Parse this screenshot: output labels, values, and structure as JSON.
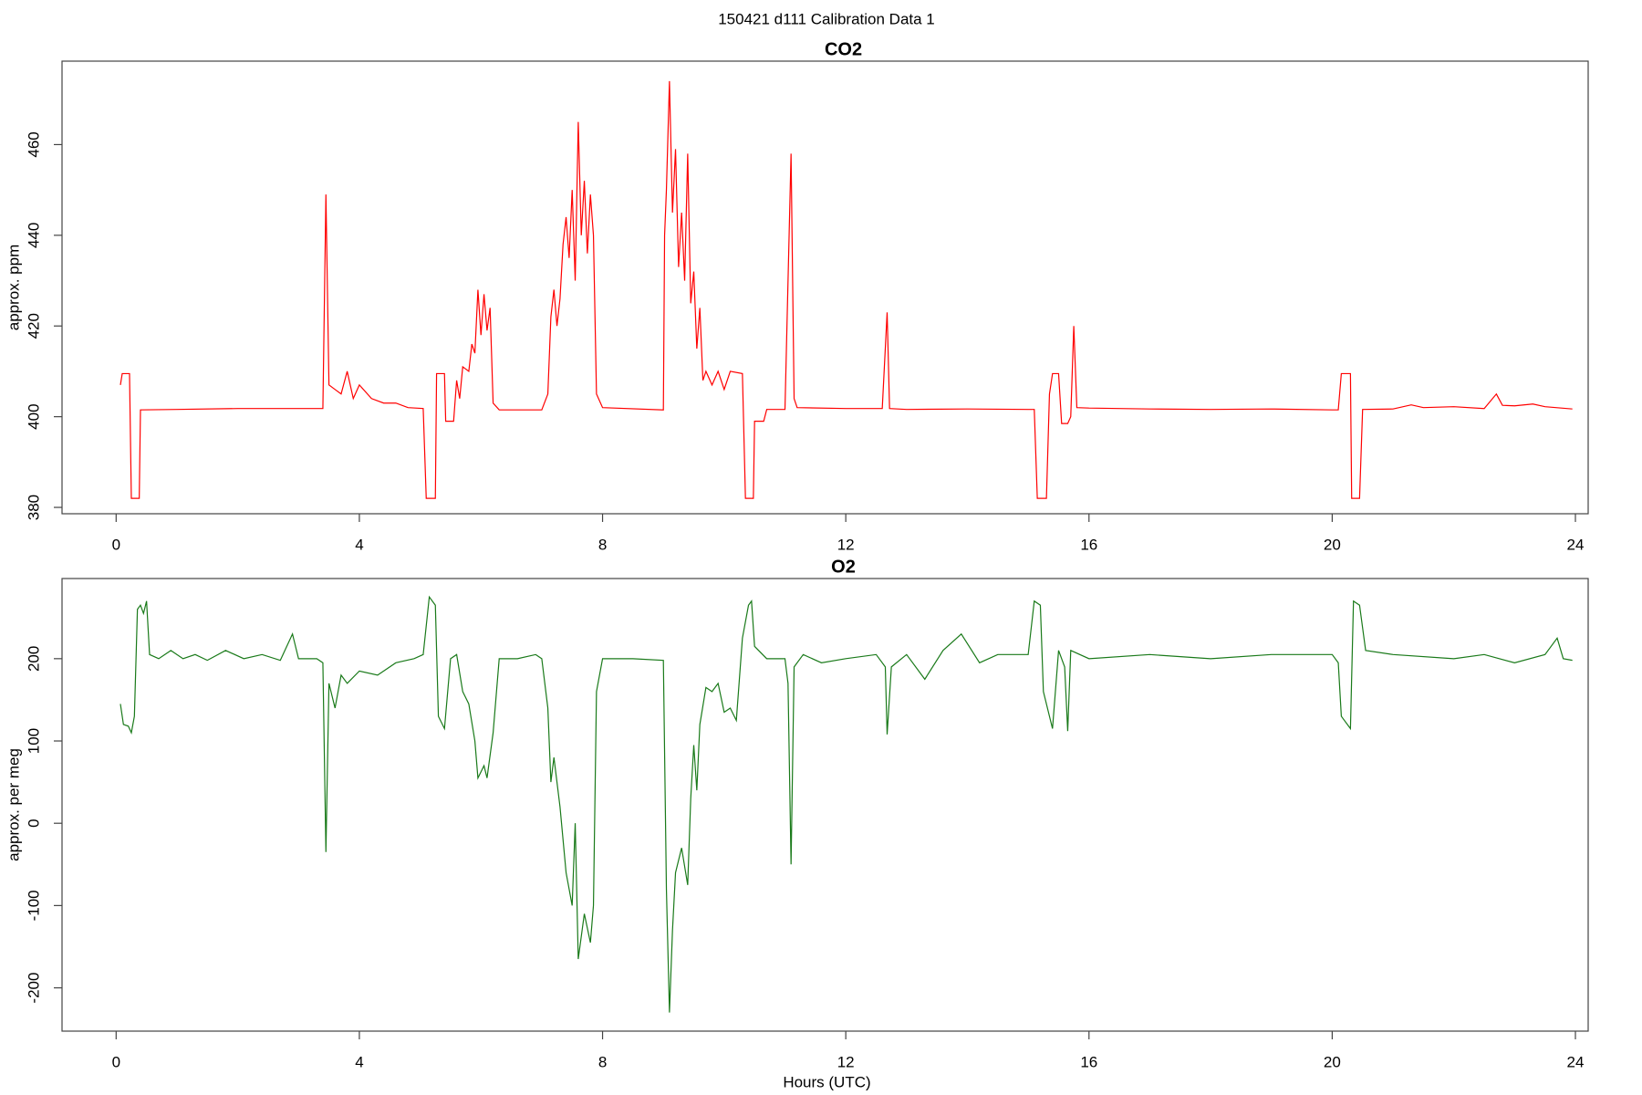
{
  "title": "150421   d111   Calibration Data 1",
  "chart_data": [
    {
      "type": "line",
      "title": "CO2",
      "ylabel": "approx. ppm",
      "color": "#ff0000",
      "xlim": [
        -0.89,
        24.21
      ],
      "xticks": [
        0,
        4,
        8,
        12,
        16,
        20,
        24
      ],
      "ylim": [
        378.6,
        478.4
      ],
      "yticks": [
        380,
        400,
        420,
        440,
        460
      ],
      "x": [
        0.07,
        0.1,
        0.22,
        0.25,
        0.38,
        0.4,
        1,
        2,
        3,
        3.4,
        3.45,
        3.5,
        3.6,
        3.7,
        3.8,
        3.9,
        4.0,
        4.2,
        4.4,
        4.6,
        4.8,
        5.05,
        5.1,
        5.25,
        5.27,
        5.4,
        5.42,
        5.55,
        5.6,
        5.65,
        5.7,
        5.8,
        5.85,
        5.9,
        5.95,
        6.0,
        6.05,
        6.1,
        6.15,
        6.2,
        6.3,
        7.0,
        7.1,
        7.15,
        7.2,
        7.25,
        7.3,
        7.35,
        7.4,
        7.45,
        7.5,
        7.55,
        7.6,
        7.65,
        7.7,
        7.75,
        7.8,
        7.85,
        7.9,
        8.0,
        9.0,
        9.02,
        9.05,
        9.1,
        9.15,
        9.2,
        9.25,
        9.3,
        9.35,
        9.4,
        9.45,
        9.5,
        9.55,
        9.6,
        9.65,
        9.7,
        9.8,
        9.9,
        10.0,
        10.1,
        10.3,
        10.35,
        10.48,
        10.5,
        10.65,
        10.7,
        11.0,
        11.1,
        11.15,
        11.2,
        12,
        12.6,
        12.68,
        12.72,
        13,
        14,
        15,
        15.1,
        15.15,
        15.3,
        15.35,
        15.4,
        15.5,
        15.55,
        15.65,
        15.7,
        15.75,
        15.8,
        16,
        17,
        18,
        19,
        20,
        20.1,
        20.15,
        20.3,
        20.32,
        20.45,
        20.5,
        21,
        21.3,
        21.5,
        22,
        22.5,
        22.7,
        22.8,
        23,
        23.3,
        23.5,
        23.95
      ],
      "values": [
        407,
        409.5,
        409.5,
        382,
        382,
        401.5,
        401.6,
        401.8,
        401.8,
        401.8,
        449,
        407,
        406,
        405,
        410,
        404,
        407,
        404,
        403,
        403,
        402,
        401.8,
        382,
        382,
        409.5,
        409.5,
        399,
        399,
        408,
        404,
        411,
        410,
        416,
        414,
        428,
        418,
        427,
        419,
        424,
        403,
        401.5,
        401.5,
        405,
        422,
        428,
        420,
        426,
        438,
        444,
        435,
        450,
        430,
        465,
        440,
        452,
        436,
        449,
        440,
        405,
        402,
        401.5,
        440,
        450,
        474,
        445,
        459,
        433,
        445,
        430,
        458,
        425,
        432,
        415,
        424,
        408,
        410,
        407,
        410,
        406,
        410,
        409.5,
        382,
        382,
        399,
        399,
        401.6,
        401.6,
        458,
        404,
        402,
        401.8,
        401.8,
        423,
        401.8,
        401.6,
        401.7,
        401.6,
        401.6,
        382,
        382,
        405,
        409.5,
        409.5,
        398.5,
        398.5,
        400,
        420,
        402,
        401.9,
        401.7,
        401.6,
        401.7,
        401.5,
        401.5,
        409.5,
        409.5,
        382,
        382,
        401.6,
        401.7,
        402.6,
        402,
        402.2,
        401.8,
        405,
        402.5,
        402.4,
        402.8,
        402.2,
        401.7
      ]
    },
    {
      "type": "line",
      "title": "O2",
      "ylabel": "approx. per meg",
      "xlabel": "Hours (UTC)",
      "color": "#1a7a1a",
      "xlim": [
        -0.89,
        24.21
      ],
      "xticks": [
        0,
        4,
        8,
        12,
        16,
        20,
        24
      ],
      "ylim": [
        -252.6,
        297.4
      ],
      "yticks": [
        -200,
        -100,
        0,
        100,
        200
      ],
      "x": [
        0.07,
        0.12,
        0.2,
        0.25,
        0.3,
        0.35,
        0.4,
        0.45,
        0.5,
        0.55,
        0.7,
        0.9,
        1.1,
        1.3,
        1.5,
        1.8,
        2.1,
        2.4,
        2.7,
        2.9,
        3.0,
        3.3,
        3.4,
        3.45,
        3.5,
        3.6,
        3.7,
        3.8,
        4.0,
        4.3,
        4.6,
        4.9,
        5.05,
        5.15,
        5.25,
        5.3,
        5.4,
        5.5,
        5.6,
        5.7,
        5.8,
        5.9,
        5.95,
        6.05,
        6.1,
        6.2,
        6.3,
        6.6,
        6.9,
        7.0,
        7.1,
        7.15,
        7.2,
        7.3,
        7.4,
        7.5,
        7.55,
        7.6,
        7.7,
        7.8,
        7.85,
        7.9,
        8.0,
        8.5,
        9.0,
        9.05,
        9.1,
        9.15,
        9.2,
        9.3,
        9.4,
        9.45,
        9.5,
        9.55,
        9.6,
        9.7,
        9.8,
        9.9,
        10.0,
        10.1,
        10.2,
        10.3,
        10.4,
        10.45,
        10.5,
        10.7,
        11.0,
        11.05,
        11.1,
        11.15,
        11.3,
        11.6,
        12,
        12.5,
        12.65,
        12.68,
        12.75,
        13,
        13.3,
        13.6,
        13.9,
        14.2,
        14.5,
        15.0,
        15.1,
        15.2,
        15.25,
        15.35,
        15.4,
        15.5,
        15.6,
        15.65,
        15.7,
        16,
        17,
        18,
        19,
        20,
        20.1,
        20.15,
        20.3,
        20.35,
        20.45,
        20.55,
        21,
        22,
        22.5,
        23,
        23.5,
        23.7,
        23.8,
        23.95
      ],
      "values": [
        145,
        120,
        118,
        110,
        130,
        260,
        265,
        255,
        270,
        205,
        200,
        210,
        200,
        205,
        198,
        210,
        200,
        205,
        198,
        230,
        200,
        200,
        195,
        -35,
        170,
        140,
        180,
        170,
        185,
        180,
        195,
        200,
        205,
        275,
        265,
        130,
        115,
        200,
        205,
        160,
        145,
        100,
        55,
        70,
        55,
        110,
        200,
        200,
        205,
        200,
        140,
        50,
        80,
        20,
        -60,
        -100,
        0,
        -165,
        -110,
        -145,
        -100,
        160,
        200,
        200,
        198,
        -80,
        -230,
        -130,
        -60,
        -30,
        -75,
        30,
        95,
        40,
        120,
        165,
        160,
        170,
        135,
        140,
        125,
        225,
        265,
        270,
        215,
        200,
        200,
        170,
        -50,
        190,
        205,
        195,
        200,
        205,
        190,
        108,
        190,
        205,
        175,
        210,
        230,
        195,
        205,
        205,
        270,
        265,
        160,
        130,
        115,
        210,
        190,
        112,
        210,
        200,
        205,
        200,
        205,
        205,
        195,
        130,
        115,
        270,
        265,
        210,
        205,
        200,
        205,
        195,
        205,
        225,
        200,
        198
      ]
    }
  ]
}
